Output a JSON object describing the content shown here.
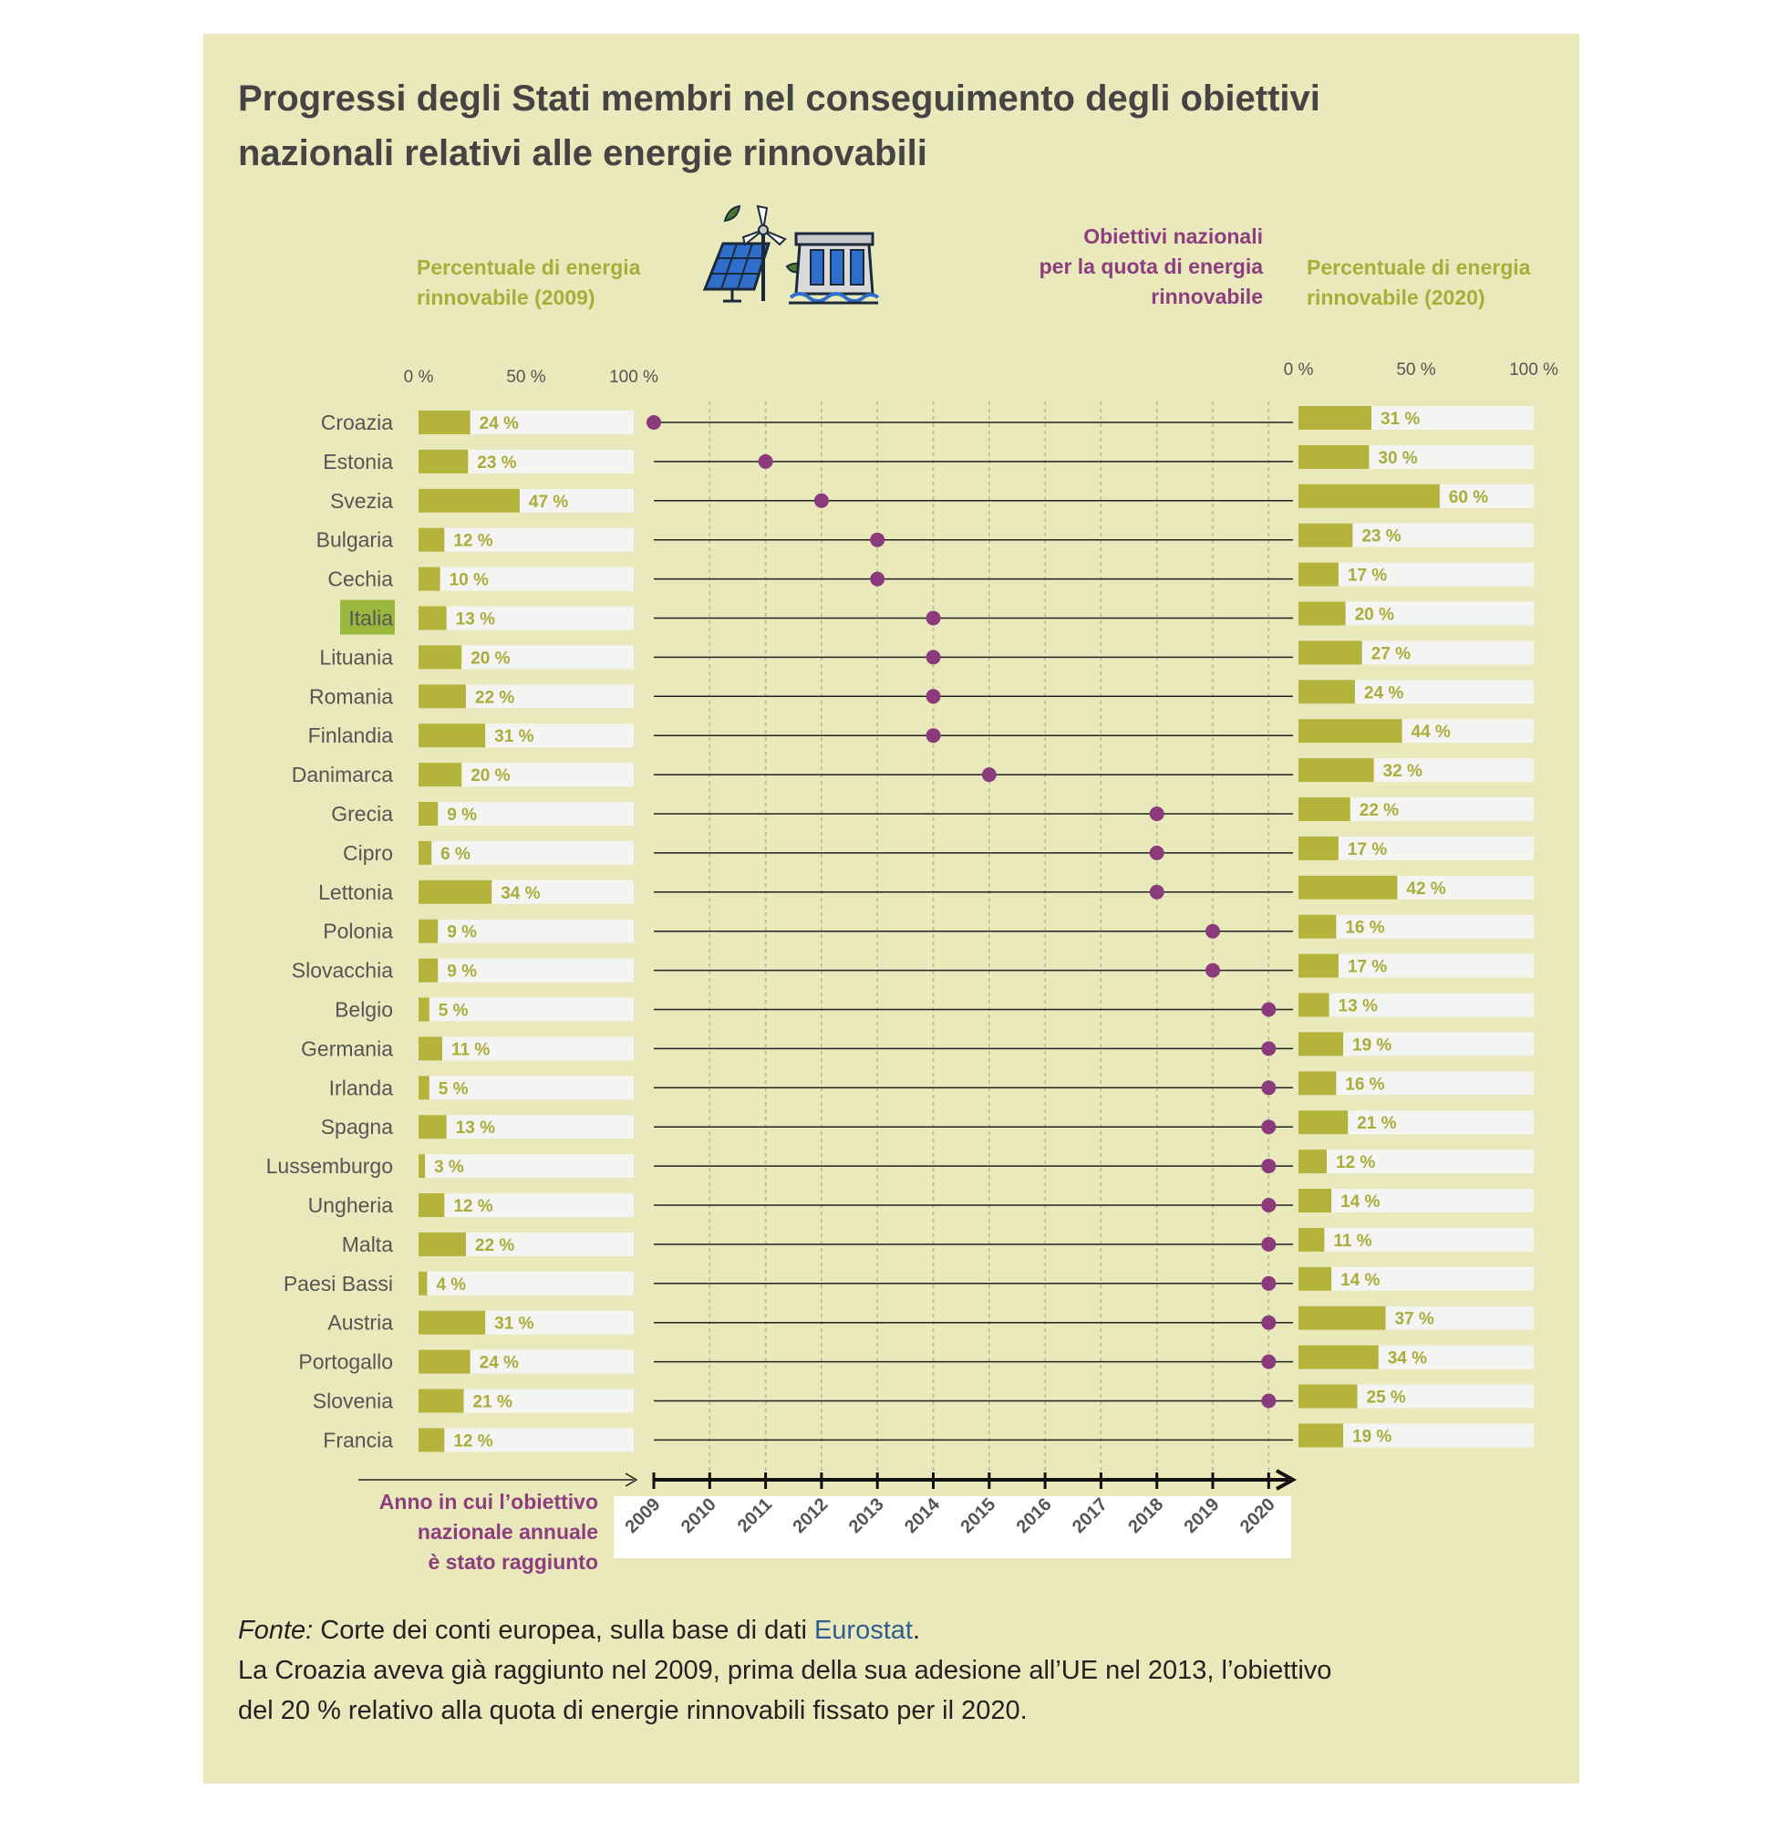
{
  "title": {
    "line1": "Progressi degli Stati membri nel conseguimento degli obiettivi",
    "line2": "nazionali relativi alle energie rinnovabili"
  },
  "headers": {
    "left": [
      "Percentuale di energia",
      "rinnovabile (2009)"
    ],
    "middle": [
      "Obiettivi nazionali",
      "per la quota di energia",
      "rinnovabile"
    ],
    "right": [
      "Percentuale di energia",
      "rinnovabile (2020)"
    ]
  },
  "icon": "solar-wind-hydro-icon",
  "colors": {
    "background": "#e9e9bc",
    "bar": "#b4b43c",
    "bar_track": "#f4f4f2",
    "dot": "#8b3b7c",
    "label_olive": "#a9ad3a",
    "label_purple": "#8e3d7f",
    "highlight": "#9ab73e"
  },
  "chart_data": {
    "type": "bar",
    "highlight_category": "Italia",
    "left_axis_ticks": [
      "0 %",
      "50 %",
      "100 %"
    ],
    "right_axis_ticks": [
      "0 %",
      "50 %",
      "100 %"
    ],
    "xlim_share": [
      0,
      100
    ],
    "year_ticks": [
      "2009",
      "2010",
      "2011",
      "2012",
      "2013",
      "2014",
      "2015",
      "2016",
      "2017",
      "2018",
      "2019",
      "2020"
    ],
    "year_axis_label": [
      "Anno in cui l’obiettivo",
      "nazionale annuale",
      "è stato raggiunto"
    ],
    "categories": [
      "Croazia",
      "Estonia",
      "Svezia",
      "Bulgaria",
      "Cechia",
      "Italia",
      "Lituania",
      "Romania",
      "Finlandia",
      "Danimarca",
      "Grecia",
      "Cipro",
      "Lettonia",
      "Polonia",
      "Slovacchia",
      "Belgio",
      "Germania",
      "Irlanda",
      "Spagna",
      "Lussemburgo",
      "Ungheria",
      "Malta",
      "Paesi Bassi",
      "Austria",
      "Portogallo",
      "Slovenia",
      "Francia"
    ],
    "series": [
      {
        "name": "Percentuale di energia rinnovabile (2009)",
        "values": [
          24,
          23,
          47,
          12,
          10,
          13,
          20,
          22,
          31,
          20,
          9,
          6,
          34,
          9,
          9,
          5,
          11,
          5,
          13,
          3,
          12,
          22,
          4,
          31,
          24,
          21,
          12
        ]
      },
      {
        "name": "Percentuale di energia rinnovabile (2020)",
        "values": [
          31,
          30,
          60,
          23,
          17,
          20,
          27,
          24,
          44,
          32,
          22,
          17,
          42,
          16,
          17,
          13,
          19,
          16,
          21,
          12,
          14,
          11,
          14,
          37,
          34,
          25,
          19
        ]
      },
      {
        "name": "Obiettivi nazionali per la quota di energia rinnovabile",
        "values": [
          2009,
          2011,
          2012,
          2013,
          2013,
          2014,
          2014,
          2014,
          2014,
          2015,
          2018,
          2018,
          2018,
          2019,
          2019,
          2020,
          2020,
          2020,
          2020,
          2020,
          2020,
          2020,
          2020,
          2020,
          2020,
          2020,
          null
        ]
      }
    ]
  },
  "notes": {
    "source_label": "Fonte:",
    "source_text": " Corte dei conti europea, sulla base di dati ",
    "source_link": "Eurostat",
    "source_end": ".",
    "line2": "La Croazia aveva già raggiunto nel 2009, prima della sua adesione all’UE nel 2013, l’obiettivo",
    "line3": "del 20 % relativo alla quota di energie rinnovabili fissato per il 2020."
  }
}
